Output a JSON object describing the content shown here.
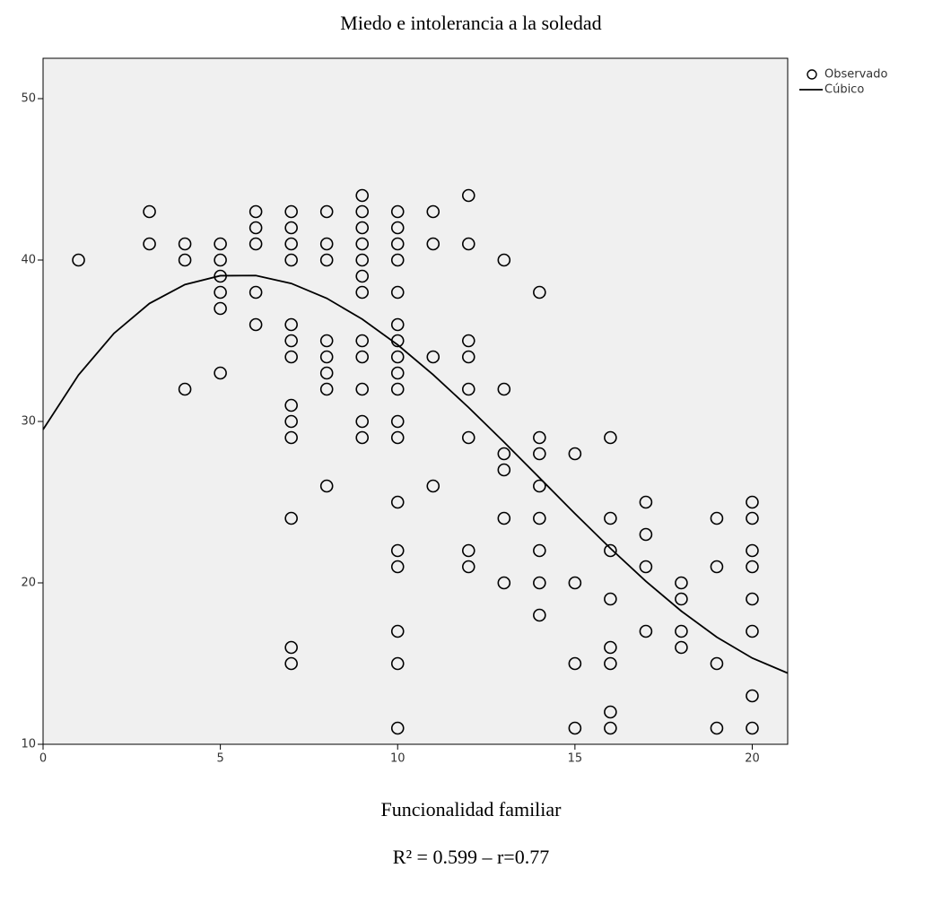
{
  "chart_data": {
    "type": "scatter",
    "title": "Miedo e intolerancia a la soledad",
    "x_label": "Funcionalidad familiar",
    "annotation": "R² = 0.599 – r=0.77",
    "xlim": [
      0,
      21
    ],
    "xticks": [
      0,
      5,
      10,
      15,
      20
    ],
    "ylim": [
      10,
      52.5
    ],
    "yticks": [
      10,
      20,
      30,
      40,
      50
    ],
    "background": "#f0f0f0",
    "legend": "outside-top-right",
    "series": [
      {
        "name": "Observado",
        "color": "#000000",
        "marker": "circle",
        "x": [
          1,
          3,
          3,
          4,
          4,
          4,
          5,
          5,
          5,
          5,
          5,
          5,
          6,
          6,
          6,
          6,
          6,
          7,
          7,
          7,
          7,
          7,
          7,
          7,
          7,
          7,
          7,
          7,
          7,
          7,
          8,
          8,
          8,
          8,
          8,
          8,
          8,
          8,
          9,
          9,
          9,
          9,
          9,
          9,
          9,
          9,
          9,
          9,
          9,
          9,
          10,
          10,
          10,
          10,
          10,
          10,
          10,
          10,
          10,
          10,
          10,
          10,
          10,
          10,
          10,
          10,
          10,
          10,
          11,
          11,
          11,
          11,
          12,
          12,
          12,
          12,
          12,
          12,
          12,
          12,
          13,
          13,
          13,
          13,
          13,
          13,
          14,
          14,
          14,
          14,
          14,
          14,
          14,
          14,
          15,
          15,
          15,
          15,
          16,
          16,
          16,
          16,
          16,
          16,
          16,
          16,
          17,
          17,
          17,
          17,
          18,
          18,
          18,
          18,
          19,
          19,
          19,
          19,
          20,
          20,
          20,
          20,
          20,
          20,
          20,
          20
        ],
        "values": [
          40,
          43,
          41,
          41,
          40,
          32,
          41,
          40,
          39,
          38,
          37,
          33,
          43,
          42,
          41,
          38,
          36,
          43,
          42,
          41,
          40,
          36,
          35,
          34,
          31,
          30,
          29,
          24,
          16,
          15,
          43,
          41,
          40,
          35,
          34,
          33,
          32,
          26,
          44,
          43,
          42,
          41,
          40,
          39,
          38,
          35,
          34,
          32,
          30,
          29,
          43,
          42,
          41,
          40,
          38,
          36,
          35,
          34,
          33,
          32,
          30,
          29,
          25,
          22,
          21,
          17,
          15,
          11,
          43,
          41,
          34,
          26,
          44,
          41,
          35,
          34,
          32,
          29,
          22,
          21,
          40,
          32,
          28,
          27,
          24,
          20,
          38,
          29,
          28,
          26,
          24,
          22,
          20,
          18,
          28,
          20,
          15,
          11,
          29,
          24,
          22,
          19,
          16,
          15,
          12,
          11,
          25,
          23,
          21,
          17,
          20,
          19,
          17,
          16,
          24,
          21,
          15,
          11,
          25,
          24,
          22,
          21,
          19,
          17,
          13,
          11
        ]
      },
      {
        "name": "Cúbico",
        "color": "#000000",
        "marker": "line",
        "x": [
          0,
          1,
          2,
          3,
          4,
          5,
          6,
          7,
          8,
          9,
          10,
          11,
          12,
          13,
          14,
          15,
          16,
          17,
          18,
          19,
          20,
          21
        ],
        "values": [
          29.5,
          32.88,
          35.46,
          37.31,
          38.48,
          39.03,
          39.04,
          38.55,
          37.63,
          36.34,
          34.75,
          32.9,
          30.87,
          28.72,
          26.51,
          24.29,
          22.14,
          20.1,
          18.25,
          16.64,
          15.34,
          14.41
        ]
      }
    ]
  }
}
